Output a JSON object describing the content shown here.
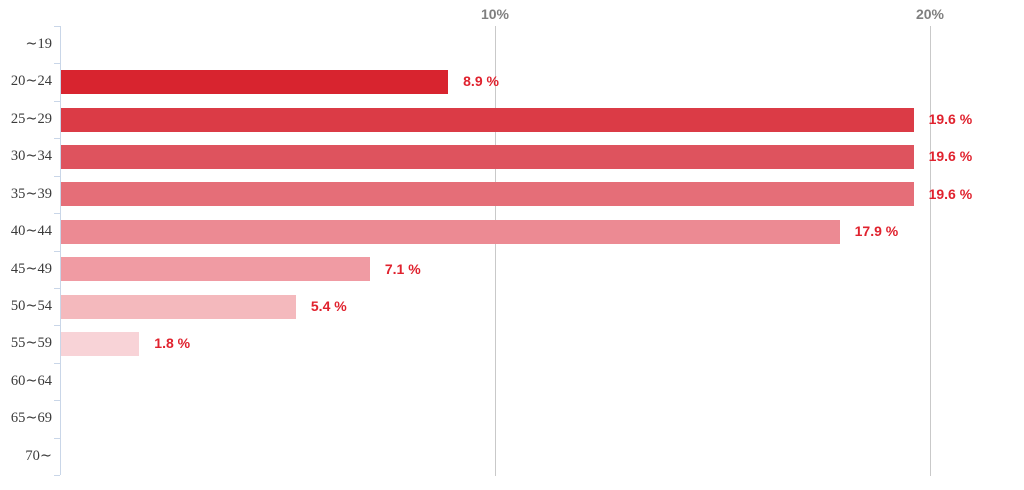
{
  "chart_data": {
    "type": "bar",
    "orientation": "horizontal",
    "title": "",
    "xlabel": "",
    "ylabel": "",
    "xlim": [
      0,
      22.2
    ],
    "grid": "vertical-only",
    "legend": "none",
    "x_axis_ticks": [
      {
        "label": "10%",
        "value": 10
      },
      {
        "label": "20%",
        "value": 20
      }
    ],
    "categories": [
      "∼19",
      "20∼24",
      "25∼29",
      "30∼34",
      "35∼39",
      "40∼44",
      "45∼49",
      "50∼54",
      "55∼59",
      "60∼64",
      "65∼69",
      "70∼"
    ],
    "values": [
      null,
      8.9,
      19.6,
      19.6,
      19.6,
      17.9,
      7.1,
      5.4,
      1.8,
      null,
      null,
      null
    ],
    "value_labels": [
      "",
      "8.9 %",
      "19.6 %",
      "19.6 %",
      "19.6 %",
      "17.9 %",
      "7.1 %",
      "5.4 %",
      "1.8 %",
      "",
      "",
      ""
    ],
    "bar_colors": [
      null,
      "#d8242f",
      "#db3b46",
      "#de535e",
      "#e56e78",
      "#ec8a93",
      "#f09ba3",
      "#f4b9bd",
      "#f8d3d7",
      null,
      null,
      null
    ]
  },
  "colors": {
    "value_label": "#e0222e",
    "gridline": "#c9c9c9",
    "axis_line": "#c9d6e8",
    "x_tick_label": "#7f7f7f",
    "category_label": "#3b3b3b",
    "background": "#ffffff"
  }
}
